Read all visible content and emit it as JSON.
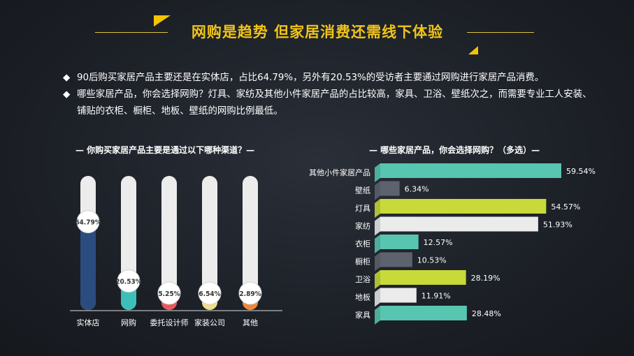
{
  "title": "网购是趋势 但家居消费还需线下体验",
  "bullets": [
    {
      "mark": "◆",
      "text": "90后购买家居产品主要还是在实体店，占比64.79%，另外有20.53%的受访者主要通过网购进行家居产品消费。"
    },
    {
      "mark": "◆",
      "text": "哪些家居产品，你会选择网购？灯具、家纺及其他小件家居产品的占比较高，家具、卫浴、壁纸次之，而需要专业工人安装、铺贴的衣柜、橱柜、地板、壁纸的网购比例最低。"
    }
  ],
  "chart_data": [
    {
      "type": "bar",
      "title": "— 你购买家居产品主要是通过以下哪种渠道？—",
      "categories": [
        "实体店",
        "网购",
        "委托设计师",
        "家装公司",
        "其他"
      ],
      "values": [
        64.79,
        20.53,
        5.25,
        6.54,
        2.89
      ],
      "value_labels": [
        "64.79%",
        "20.53%",
        "5.25%",
        "6.54%",
        "2.89%"
      ],
      "colors": [
        "#2b4c7e",
        "#3dbfb9",
        "#e8595c",
        "#f0dd8a",
        "#f0883a"
      ],
      "track_color": "#ececec",
      "ylim": [
        0,
        100
      ]
    },
    {
      "type": "bar",
      "orientation": "horizontal",
      "title": "— 哪些家居产品，你会选择网购？（多选）—",
      "categories": [
        "其他小件家居产品",
        "壁纸",
        "灯具",
        "家纺",
        "衣柜",
        "橱柜",
        "卫浴",
        "地板",
        "家具"
      ],
      "values": [
        59.54,
        6.34,
        54.57,
        51.93,
        12.57,
        10.53,
        28.19,
        11.91,
        28.48
      ],
      "value_labels": [
        "59.54%",
        "6.34%",
        "54.57%",
        "51.93%",
        "12.57%",
        "10.53%",
        "28.19%",
        "11.91%",
        "28.48%"
      ],
      "colors": [
        "#57c5b0",
        "#5d636e",
        "#c8d93a",
        "#ebebeb",
        "#57c5b0",
        "#5d636e",
        "#c8d93a",
        "#ebebeb",
        "#57c5b0"
      ],
      "xlim": [
        0,
        59.54
      ]
    }
  ]
}
